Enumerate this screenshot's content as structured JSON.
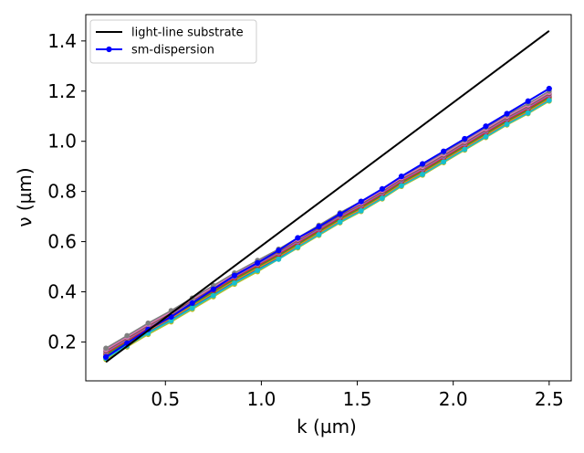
{
  "chart_data": {
    "type": "line",
    "xlabel": "k (µm)",
    "ylabel": "ν (µm)",
    "xlim": [
      0.085,
      2.615
    ],
    "ylim": [
      0.045,
      1.505
    ],
    "xticks": [
      0.5,
      1.0,
      1.5,
      2.0,
      2.5
    ],
    "xtick_labels": [
      "0.5",
      "1.0",
      "1.5",
      "2.0",
      "2.5"
    ],
    "yticks": [
      0.2,
      0.4,
      0.6,
      0.8,
      1.0,
      1.2,
      1.4
    ],
    "ytick_labels": [
      "0.2",
      "0.4",
      "0.6",
      "0.8",
      "1.0",
      "1.2",
      "1.4"
    ],
    "grid": false,
    "legend_position": "top-left",
    "legend": [
      {
        "label": "light-line substrate",
        "color": "#000000",
        "marker": "none"
      },
      {
        "label": "sm-dispersion",
        "color": "#0000ff",
        "marker": "circle"
      }
    ],
    "x": [
      0.19,
      0.3,
      0.41,
      0.53,
      0.64,
      0.75,
      0.86,
      0.98,
      1.09,
      1.19,
      1.3,
      1.41,
      1.52,
      1.63,
      1.73,
      1.84,
      1.95,
      2.06,
      2.17,
      2.28,
      2.39,
      2.5
    ],
    "series": [
      {
        "name": "light-line substrate",
        "color": "#000000",
        "marker": "none",
        "x": [
          0.19,
          2.5
        ],
        "values": [
          0.12,
          1.44
        ]
      },
      {
        "color": "#1f77b4",
        "marker": "circle",
        "values": [
          0.14,
          0.19,
          0.24,
          0.29,
          0.34,
          0.39,
          0.44,
          0.49,
          0.535,
          0.58,
          0.63,
          0.68,
          0.725,
          0.775,
          0.825,
          0.87,
          0.92,
          0.97,
          1.02,
          1.07,
          1.115,
          1.165
        ]
      },
      {
        "color": "#ff7f0e",
        "marker": "circle",
        "values": [
          0.145,
          0.195,
          0.245,
          0.295,
          0.345,
          0.395,
          0.445,
          0.495,
          0.54,
          0.585,
          0.635,
          0.685,
          0.73,
          0.78,
          0.83,
          0.875,
          0.925,
          0.975,
          1.025,
          1.075,
          1.12,
          1.17
        ]
      },
      {
        "color": "#2ca02c",
        "marker": "circle",
        "values": [
          0.15,
          0.2,
          0.25,
          0.3,
          0.35,
          0.4,
          0.45,
          0.5,
          0.545,
          0.59,
          0.64,
          0.69,
          0.735,
          0.785,
          0.835,
          0.88,
          0.93,
          0.98,
          1.03,
          1.08,
          1.125,
          1.175
        ]
      },
      {
        "color": "#d62728",
        "marker": "circle",
        "values": [
          0.155,
          0.205,
          0.255,
          0.305,
          0.355,
          0.405,
          0.455,
          0.505,
          0.55,
          0.595,
          0.645,
          0.695,
          0.74,
          0.79,
          0.84,
          0.885,
          0.935,
          0.985,
          1.035,
          1.085,
          1.13,
          1.18
        ]
      },
      {
        "color": "#9467bd",
        "marker": "circle",
        "values": [
          0.16,
          0.21,
          0.26,
          0.31,
          0.36,
          0.41,
          0.46,
          0.51,
          0.555,
          0.6,
          0.65,
          0.7,
          0.745,
          0.795,
          0.845,
          0.89,
          0.94,
          0.99,
          1.04,
          1.09,
          1.135,
          1.185
        ]
      },
      {
        "color": "#8c564b",
        "marker": "circle",
        "values": [
          0.165,
          0.215,
          0.265,
          0.315,
          0.365,
          0.415,
          0.465,
          0.515,
          0.56,
          0.605,
          0.655,
          0.705,
          0.75,
          0.8,
          0.85,
          0.895,
          0.945,
          0.995,
          1.045,
          1.095,
          1.14,
          1.19
        ]
      },
      {
        "color": "#e377c2",
        "marker": "circle",
        "values": [
          0.17,
          0.22,
          0.27,
          0.32,
          0.37,
          0.42,
          0.47,
          0.52,
          0.565,
          0.61,
          0.66,
          0.71,
          0.755,
          0.805,
          0.855,
          0.9,
          0.95,
          1.0,
          1.05,
          1.1,
          1.145,
          1.195
        ]
      },
      {
        "color": "#7f7f7f",
        "marker": "circle",
        "values": [
          0.175,
          0.225,
          0.275,
          0.325,
          0.375,
          0.425,
          0.475,
          0.525,
          0.57,
          0.615,
          0.665,
          0.715,
          0.76,
          0.81,
          0.86,
          0.905,
          0.955,
          1.005,
          1.055,
          1.105,
          1.15,
          1.2
        ]
      },
      {
        "color": "#bcbd22",
        "marker": "circle",
        "values": [
          0.13,
          0.18,
          0.23,
          0.28,
          0.33,
          0.38,
          0.43,
          0.48,
          0.53,
          0.575,
          0.625,
          0.675,
          0.72,
          0.77,
          0.82,
          0.865,
          0.915,
          0.965,
          1.015,
          1.065,
          1.11,
          1.16
        ]
      },
      {
        "color": "#17becf",
        "marker": "circle",
        "values": [
          0.135,
          0.185,
          0.235,
          0.285,
          0.335,
          0.385,
          0.435,
          0.485,
          0.53,
          0.578,
          0.628,
          0.678,
          0.723,
          0.773,
          0.823,
          0.868,
          0.918,
          0.968,
          1.018,
          1.068,
          1.113,
          1.163
        ]
      },
      {
        "name": "sm-dispersion",
        "color": "#0000ff",
        "marker": "circle",
        "values": [
          0.14,
          0.195,
          0.25,
          0.3,
          0.355,
          0.41,
          0.465,
          0.515,
          0.565,
          0.615,
          0.66,
          0.71,
          0.76,
          0.81,
          0.86,
          0.91,
          0.96,
          1.01,
          1.06,
          1.11,
          1.16,
          1.21
        ]
      }
    ]
  }
}
